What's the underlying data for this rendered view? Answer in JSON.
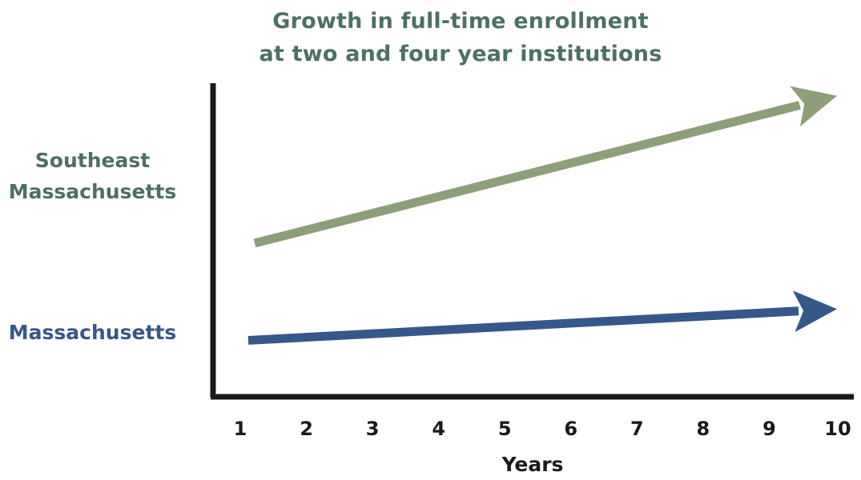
{
  "chart_data": {
    "type": "line",
    "title": [
      "Growth in full-time enrollment",
      "at two and four year institutions"
    ],
    "xlabel": "Years",
    "ylabel": "",
    "categories": [
      "1",
      "2",
      "3",
      "4",
      "5",
      "6",
      "7",
      "8",
      "9",
      "10"
    ],
    "grid": false,
    "legend": "left, labels beside each series",
    "series": [
      {
        "name": "Southeast Massachusetts",
        "color": "#8d9e78",
        "start": {
          "x": 1,
          "y": 0.49
        },
        "end": {
          "x": 10,
          "y": 0.96
        },
        "arrowhead": true
      },
      {
        "name": "Massachusetts",
        "color": "#35588a",
        "start": {
          "x": 1,
          "y": 0.18
        },
        "end": {
          "x": 10,
          "y": 0.28
        },
        "arrowhead": true
      }
    ],
    "axis_color": "#1a1a1a",
    "title_color": "#4d7060"
  }
}
